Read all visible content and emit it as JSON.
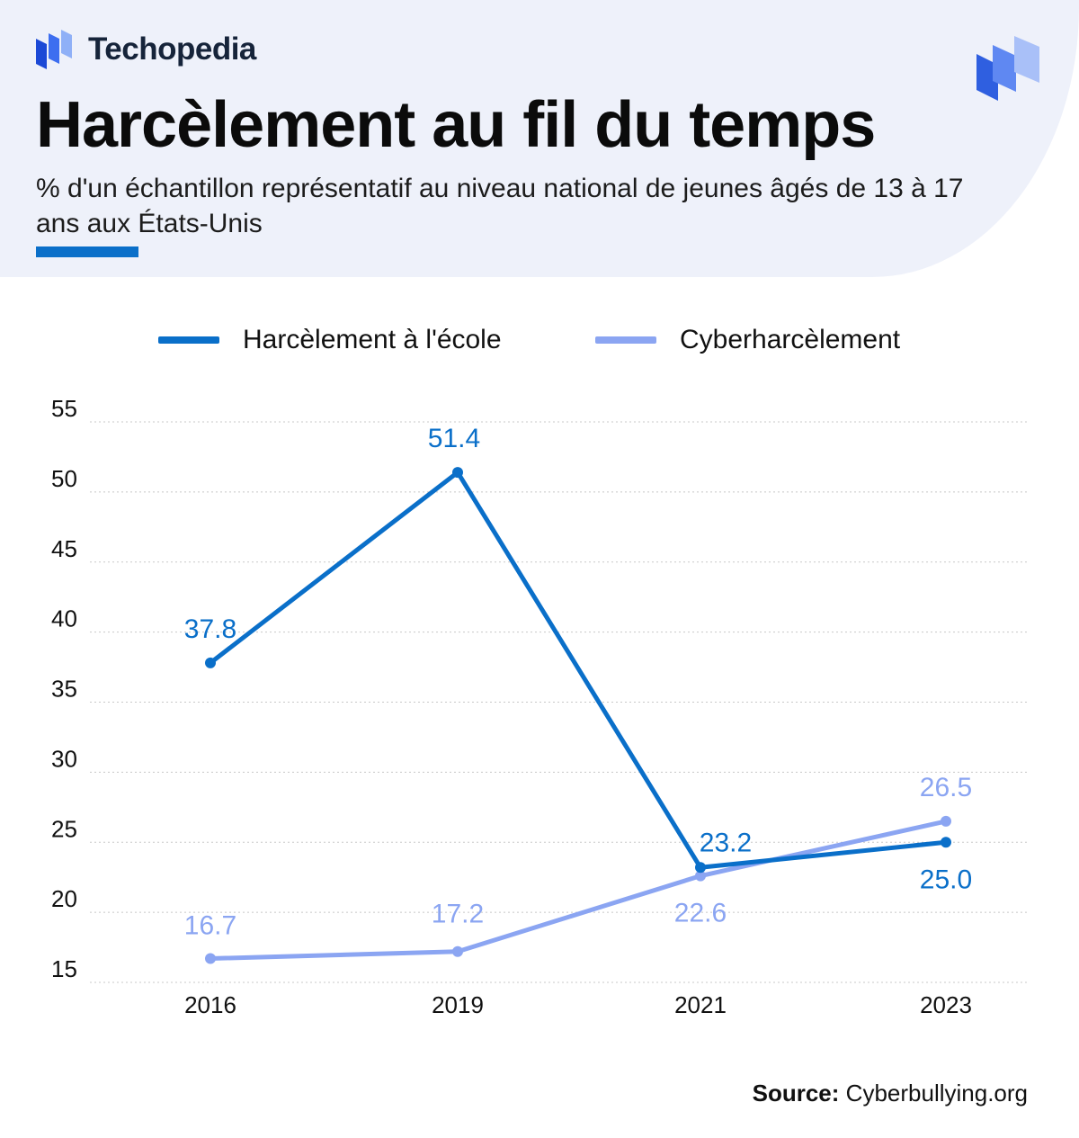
{
  "brand": {
    "name": "Techopedia"
  },
  "header": {
    "title": "Harcèlement au fil du temps",
    "subtitle": "% d'un échantillon représentatif au niveau national de jeunes âgés de 13 à 17 ans aux États-Unis"
  },
  "colors": {
    "school": "#0a6fc9",
    "cyber": "#8ba5f2",
    "header_bg": "#eef1fa",
    "grid": "#c8c8c8"
  },
  "chart_data": {
    "type": "line",
    "title": "Harcèlement au fil du temps",
    "xlabel": "",
    "ylabel": "",
    "categories": [
      "2016",
      "2019",
      "2021",
      "2023"
    ],
    "yticks": [
      15,
      20,
      25,
      30,
      35,
      40,
      45,
      50,
      55
    ],
    "ylim": [
      15,
      55
    ],
    "grid": true,
    "legend_position": "top",
    "series": [
      {
        "name": "Harcèlement à l'école",
        "values": [
          37.8,
          51.4,
          23.2,
          25.0
        ],
        "labels": [
          "37.8",
          "51.4",
          "23.2",
          "25.0"
        ]
      },
      {
        "name": "Cyberharcèlement",
        "values": [
          16.7,
          17.2,
          22.6,
          26.5
        ],
        "labels": [
          "16.7",
          "17.2",
          "22.6",
          "26.5"
        ]
      }
    ]
  },
  "source": {
    "label": "Source:",
    "text": "Cyberbullying.org"
  }
}
